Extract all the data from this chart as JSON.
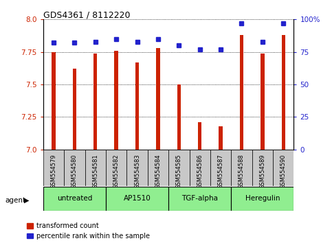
{
  "title": "GDS4361 / 8112220",
  "samples": [
    "GSM554579",
    "GSM554580",
    "GSM554581",
    "GSM554582",
    "GSM554583",
    "GSM554584",
    "GSM554585",
    "GSM554586",
    "GSM554587",
    "GSM554588",
    "GSM554589",
    "GSM554590"
  ],
  "red_values": [
    7.75,
    7.62,
    7.74,
    7.76,
    7.67,
    7.78,
    7.5,
    7.21,
    7.18,
    7.88,
    7.74,
    7.88
  ],
  "blue_values": [
    82,
    82,
    83,
    85,
    83,
    85,
    80,
    77,
    77,
    97,
    83,
    97
  ],
  "ymin": 7.0,
  "ymax": 8.0,
  "y2min": 0,
  "y2max": 100,
  "yticks": [
    7.0,
    7.25,
    7.5,
    7.75,
    8.0
  ],
  "y2ticks": [
    0,
    25,
    50,
    75,
    100
  ],
  "groups": [
    {
      "label": "untreated",
      "start": 0,
      "end": 3,
      "color": "#90EE90"
    },
    {
      "label": "AP1510",
      "start": 3,
      "end": 6,
      "color": "#90EE90"
    },
    {
      "label": "TGF-alpha",
      "start": 6,
      "end": 9,
      "color": "#90EE90"
    },
    {
      "label": "Heregulin",
      "start": 9,
      "end": 12,
      "color": "#90EE90"
    }
  ],
  "bar_color": "#CC2200",
  "dot_color": "#2222CC",
  "bar_width": 0.18,
  "background_color": "#ffffff",
  "plot_bg_color": "#ffffff",
  "legend_red": "transformed count",
  "legend_blue": "percentile rank within the sample",
  "agent_label": "agent",
  "label_bg": "#C8C8C8",
  "group_colors": [
    "#C8EEC8",
    "#98E898",
    "#90EE90",
    "#5AE85A"
  ]
}
